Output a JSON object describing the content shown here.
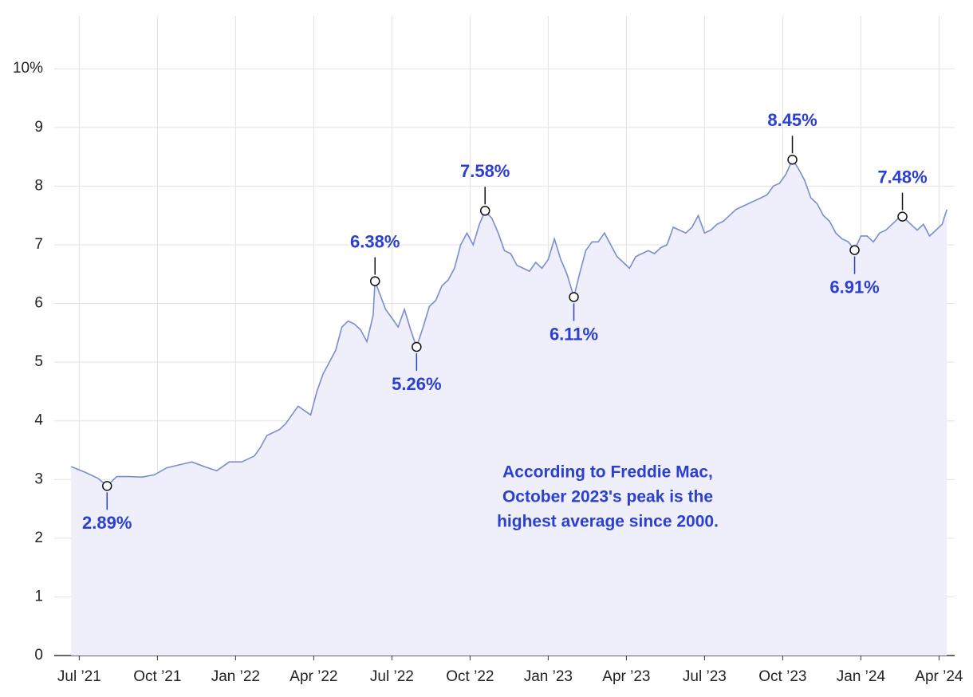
{
  "chart_data": {
    "type": "line",
    "x": [
      2021.474,
      2021.52,
      2021.56,
      2021.589,
      2021.62,
      2021.66,
      2021.7,
      2021.74,
      2021.78,
      2021.82,
      2021.86,
      2021.9,
      2021.94,
      2021.98,
      2022.0,
      2022.02,
      2022.06,
      2022.08,
      2022.1,
      2022.14,
      2022.16,
      2022.2,
      2022.24,
      2022.26,
      2022.28,
      2022.3,
      2022.32,
      2022.34,
      2022.36,
      2022.38,
      2022.4,
      2022.42,
      2022.44,
      2022.446,
      2022.48,
      2022.5,
      2022.52,
      2022.54,
      2022.56,
      2022.579,
      2022.6,
      2022.62,
      2022.64,
      2022.66,
      2022.68,
      2022.7,
      2022.72,
      2022.74,
      2022.76,
      2022.78,
      2022.798,
      2022.82,
      2022.84,
      2022.86,
      2022.88,
      2022.9,
      2022.92,
      2022.94,
      2022.96,
      2022.98,
      2023.0,
      2023.02,
      2023.04,
      2023.06,
      2023.082,
      2023.1,
      2023.12,
      2023.14,
      2023.16,
      2023.18,
      2023.2,
      2023.22,
      2023.24,
      2023.26,
      2023.28,
      2023.3,
      2023.32,
      2023.34,
      2023.36,
      2023.38,
      2023.4,
      2023.42,
      2023.44,
      2023.46,
      2023.48,
      2023.5,
      2023.52,
      2023.54,
      2023.56,
      2023.58,
      2023.6,
      2023.62,
      2023.64,
      2023.66,
      2023.68,
      2023.7,
      2023.72,
      2023.74,
      2023.76,
      2023.781,
      2023.8,
      2023.82,
      2023.84,
      2023.86,
      2023.88,
      2023.9,
      2023.92,
      2023.94,
      2023.96,
      2023.98,
      2024.0,
      2024.02,
      2024.04,
      2024.06,
      2024.08,
      2024.1,
      2024.12,
      2024.133,
      2024.16,
      2024.18,
      2024.2,
      2024.22,
      2024.24,
      2024.26,
      2024.275
    ],
    "series": [
      {
        "color": "#7b8cd1",
        "fill": "#eeeffa",
        "values": [
          3.22,
          3.12,
          3.02,
          2.89,
          3.05,
          3.05,
          3.04,
          3.08,
          3.2,
          3.25,
          3.3,
          3.22,
          3.15,
          3.3,
          3.3,
          3.3,
          3.4,
          3.55,
          3.75,
          3.85,
          3.95,
          4.25,
          4.1,
          4.5,
          4.8,
          5.0,
          5.2,
          5.6,
          5.7,
          5.65,
          5.55,
          5.35,
          5.8,
          6.38,
          5.9,
          5.75,
          5.6,
          5.9,
          5.55,
          5.26,
          5.6,
          5.95,
          6.05,
          6.3,
          6.4,
          6.6,
          7.0,
          7.2,
          7.0,
          7.35,
          7.58,
          7.45,
          7.2,
          6.9,
          6.85,
          6.65,
          6.6,
          6.55,
          6.7,
          6.6,
          6.75,
          7.1,
          6.75,
          6.5,
          6.11,
          6.5,
          6.9,
          7.05,
          7.05,
          7.2,
          7.0,
          6.8,
          6.7,
          6.6,
          6.8,
          6.85,
          6.9,
          6.85,
          6.95,
          7.0,
          7.3,
          7.25,
          7.2,
          7.3,
          7.5,
          7.2,
          7.25,
          7.35,
          7.4,
          7.5,
          7.6,
          7.65,
          7.7,
          7.75,
          7.8,
          7.85,
          8.0,
          8.05,
          8.2,
          8.45,
          8.3,
          8.1,
          7.8,
          7.7,
          7.5,
          7.4,
          7.2,
          7.1,
          7.05,
          6.91,
          7.15,
          7.15,
          7.05,
          7.2,
          7.25,
          7.35,
          7.45,
          7.48,
          7.35,
          7.25,
          7.35,
          7.15,
          7.25,
          7.35,
          7.6
        ]
      }
    ],
    "xlim": [
      2021.42,
      2024.3
    ],
    "xticks": [
      {
        "value": 2021.5,
        "label": "Jul ’21"
      },
      {
        "value": 2021.75,
        "label": "Oct ’21"
      },
      {
        "value": 2022.0,
        "label": "Jan ’22"
      },
      {
        "value": 2022.25,
        "label": "Apr ’22"
      },
      {
        "value": 2022.5,
        "label": "Jul ’22"
      },
      {
        "value": 2022.75,
        "label": "Oct ’22"
      },
      {
        "value": 2023.0,
        "label": "Jan ’23"
      },
      {
        "value": 2023.25,
        "label": "Apr ’23"
      },
      {
        "value": 2023.5,
        "label": "Jul ’23"
      },
      {
        "value": 2023.75,
        "label": "Oct ’23"
      },
      {
        "value": 2024.0,
        "label": "Jan ’24"
      },
      {
        "value": 2024.25,
        "label": "Apr ’24"
      }
    ],
    "ylim": [
      0,
      10.9
    ],
    "yticks": [
      0,
      1,
      2,
      3,
      4,
      5,
      6,
      7,
      8,
      9,
      {
        "value": 10,
        "label": "10%"
      }
    ],
    "grid": true,
    "annotations": [
      {
        "x": 2021.589,
        "y": 2.89,
        "label": "2.89%"
      },
      {
        "x": 2022.446,
        "y": 6.38,
        "label": "6.38%"
      },
      {
        "x": 2022.579,
        "y": 5.26,
        "label": "5.26%"
      },
      {
        "x": 2022.798,
        "y": 7.58,
        "label": "7.58%"
      },
      {
        "x": 2023.082,
        "y": 6.11,
        "label": "6.11%"
      },
      {
        "x": 2023.781,
        "y": 8.45,
        "label": "8.45%"
      },
      {
        "x": 2023.98,
        "y": 6.91,
        "label": "6.91%"
      },
      {
        "x": 2024.133,
        "y": 7.48,
        "label": "7.48%"
      }
    ],
    "annotation_color": "#2b3fd0",
    "note": [
      "According to Freddie Mac,",
      "October 2023's peak is the",
      "highest average since 2000."
    ]
  }
}
